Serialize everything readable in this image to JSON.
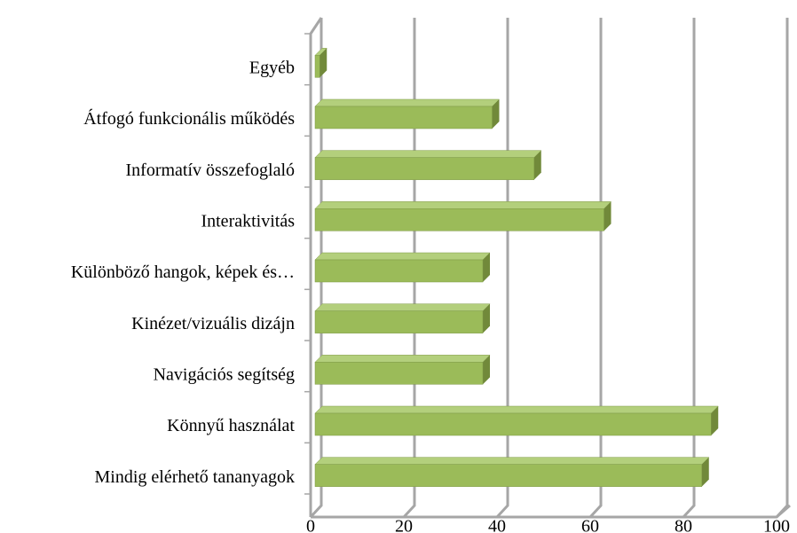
{
  "chart_data": {
    "type": "bar3d",
    "categories": [
      "Egyéb",
      "Átfogó funkcionális működés",
      "Informatív összefoglaló",
      "Interaktivitás",
      "Különböző hangok, képek és…",
      "Kinézet/vizuális dizájn",
      "Navigációs segítség",
      "Könnyű használat",
      "Mindig elérhető tananyagok"
    ],
    "values": [
      1,
      38,
      47,
      62,
      36,
      36,
      36,
      85,
      83
    ],
    "color": "#9bbb59",
    "xlim": [
      0,
      100
    ],
    "xticks": [
      0,
      20,
      40,
      60,
      80,
      100
    ],
    "grid": true
  }
}
